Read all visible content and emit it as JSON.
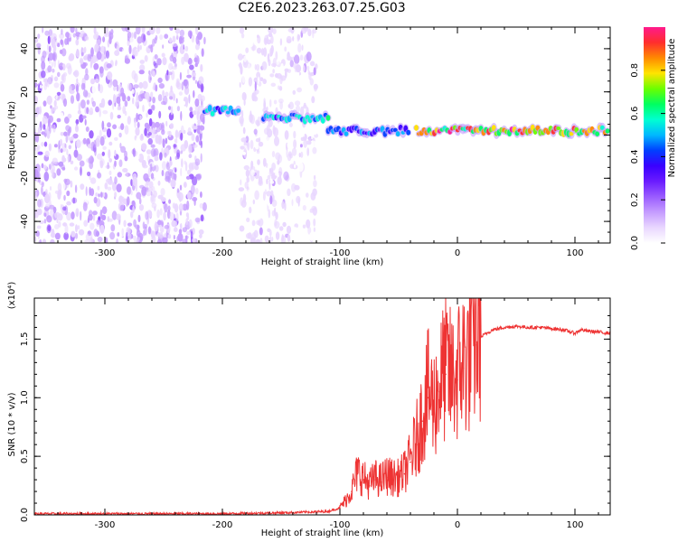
{
  "title": "C2E6.2023.263.07.25.G03",
  "colors": {
    "spectrogram_scale": [
      "#ffffff",
      "#e9d7ff",
      "#c59cff",
      "#9a5cff",
      "#6a1bff",
      "#3a00ff",
      "#0040ff",
      "#00b8ff",
      "#00ffd2",
      "#00ff60",
      "#6aff00",
      "#ffe400",
      "#ff8a00",
      "#ff2d2d",
      "#ff1a8c"
    ],
    "snr_line": "#ee3333"
  },
  "chart_data": [
    {
      "type": "heatmap",
      "xlabel": "Height of straight line (km)",
      "ylabel": "Frequency (Hz)",
      "xlim": [
        -360,
        130
      ],
      "ylim": [
        -50,
        50
      ],
      "x_ticks": [
        "-300",
        "-200",
        "-100",
        "0",
        "100"
      ],
      "y_ticks": [
        "40",
        "20",
        "0",
        "-20",
        "-40"
      ],
      "colorbar": {
        "label": "Normalized spectral amplitude",
        "range": [
          0,
          1
        ],
        "ticks": [
          "0.0",
          "0.2",
          "0.4",
          "0.6",
          "0.8"
        ]
      },
      "features": [
        {
          "x_range": [
            -360,
            -215
          ],
          "freq_range": [
            -50,
            50
          ],
          "amplitude": 0.1
        },
        {
          "x_range": [
            -185,
            -120
          ],
          "freq_range": [
            -50,
            50
          ],
          "amplitude": 0.06
        },
        {
          "x_range": [
            -215,
            -185
          ],
          "freq": 11,
          "amplitude": 0.5
        },
        {
          "x_range": [
            -165,
            -110
          ],
          "freq": 8,
          "amplitude": 0.55
        },
        {
          "x_range": [
            -110,
            -40
          ],
          "freq": 2,
          "amplitude": 0.45
        },
        {
          "x_range": [
            -35,
            130
          ],
          "freq": 2,
          "amplitude": 0.85
        }
      ]
    },
    {
      "type": "line",
      "xlabel": "Height of straight line (km)",
      "ylabel": "SNR (10 * v/v)",
      "y_multiplier": "(x10⁴)",
      "xlim": [
        -360,
        130
      ],
      "ylim": [
        0,
        1.85
      ],
      "x_ticks": [
        "-300",
        "-200",
        "-100",
        "0",
        "100"
      ],
      "y_ticks": [
        "0.0",
        "0.5",
        "1.0",
        "1.5"
      ],
      "series": [
        {
          "x": [
            -360,
            -300,
            -200,
            -140,
            -110,
            -100,
            -95,
            -90,
            -85,
            -80,
            -75,
            -70,
            -65,
            -60,
            -55,
            -50,
            -45,
            -40,
            -35,
            -30,
            -25,
            -20,
            -15,
            -10,
            -5,
            0,
            5,
            10,
            15,
            20,
            30,
            40,
            50,
            60,
            70,
            80,
            90,
            100,
            105,
            110,
            120,
            130
          ],
          "y": [
            0.01,
            0.01,
            0.01,
            0.02,
            0.03,
            0.06,
            0.12,
            0.2,
            0.35,
            0.3,
            0.25,
            0.3,
            0.28,
            0.32,
            0.3,
            0.3,
            0.35,
            0.45,
            0.6,
            0.8,
            1.0,
            0.9,
            1.05,
            1.2,
            1.1,
            1.15,
            1.25,
            1.3,
            1.45,
            1.52,
            1.58,
            1.6,
            1.61,
            1.6,
            1.6,
            1.59,
            1.58,
            1.55,
            1.58,
            1.57,
            1.56,
            1.55
          ]
        }
      ]
    }
  ]
}
